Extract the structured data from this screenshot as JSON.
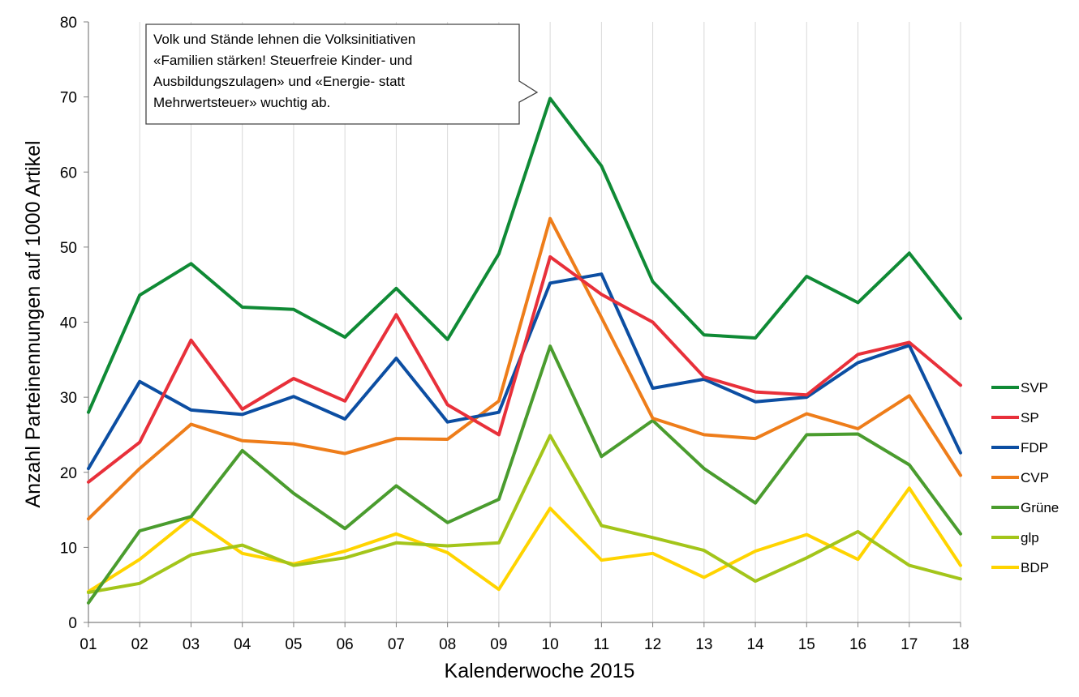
{
  "chart_data": {
    "type": "line",
    "xlabel": "Kalenderwoche 2015",
    "ylabel": "Anzahl Parteinennungen auf 1000 Artikel",
    "categories": [
      "01",
      "02",
      "03",
      "04",
      "05",
      "06",
      "07",
      "08",
      "09",
      "10",
      "11",
      "12",
      "13",
      "14",
      "15",
      "16",
      "17",
      "18"
    ],
    "ylim": [
      0,
      80
    ],
    "yticks": [
      0,
      10,
      20,
      30,
      40,
      50,
      60,
      70,
      80
    ],
    "grid": "vertical",
    "legend": "right",
    "annotation": {
      "lines": [
        "Volk und Stände lehnen die Volksinitiativen",
        "«Familien stärken! Steuerfreie Kinder- und",
        "Ausbildungszulagen»  und «Energie- statt",
        "Mehrwertsteuer»  wuchtig ab."
      ],
      "points_to": "10"
    },
    "series": [
      {
        "name": "SVP",
        "color": "#0f8a35",
        "values": [
          28,
          43.6,
          47.8,
          42,
          41.7,
          38,
          44.5,
          37.7,
          49.1,
          69.8,
          60.8,
          45.4,
          38.3,
          37.9,
          46.1,
          42.6,
          49.2,
          40.5
        ]
      },
      {
        "name": "SP",
        "color": "#e8303a",
        "values": [
          18.7,
          24,
          37.6,
          28.4,
          32.5,
          29.5,
          41,
          29,
          25,
          48.7,
          43.7,
          40,
          32.7,
          30.7,
          30.3,
          35.7,
          37.3,
          31.6
        ]
      },
      {
        "name": "FDP",
        "color": "#0c4ea2",
        "values": [
          20.5,
          32.1,
          28.3,
          27.7,
          30.1,
          27.1,
          35.2,
          26.7,
          28,
          45.2,
          46.4,
          31.2,
          32.4,
          29.4,
          30,
          34.6,
          36.9,
          22.6
        ]
      },
      {
        "name": "CVP",
        "color": "#ee7d1a",
        "values": [
          13.8,
          20.5,
          26.4,
          24.2,
          23.8,
          22.5,
          24.5,
          24.4,
          29.5,
          53.8,
          40.6,
          27.2,
          25,
          24.5,
          27.8,
          25.8,
          30.2,
          19.6
        ]
      },
      {
        "name": "Grüne",
        "color": "#4a9c2e",
        "values": [
          2.6,
          12.2,
          14.1,
          22.9,
          17.2,
          12.5,
          18.2,
          13.3,
          16.4,
          36.8,
          22.1,
          26.9,
          20.5,
          15.9,
          25,
          25.1,
          21,
          11.8
        ]
      },
      {
        "name": "glp",
        "color": "#a3c51a",
        "values": [
          4,
          5.2,
          9,
          10.3,
          7.6,
          8.6,
          10.6,
          10.2,
          10.6,
          24.9,
          12.9,
          11.3,
          9.6,
          5.5,
          8.6,
          12.1,
          7.6,
          5.8
        ]
      },
      {
        "name": "BDP",
        "color": "#ffd400",
        "values": [
          4.1,
          8.4,
          13.9,
          9.2,
          7.8,
          9.5,
          11.8,
          9.3,
          4.4,
          15.2,
          8.3,
          9.2,
          6,
          9.5,
          11.7,
          8.4,
          17.9,
          7.6
        ]
      }
    ]
  }
}
